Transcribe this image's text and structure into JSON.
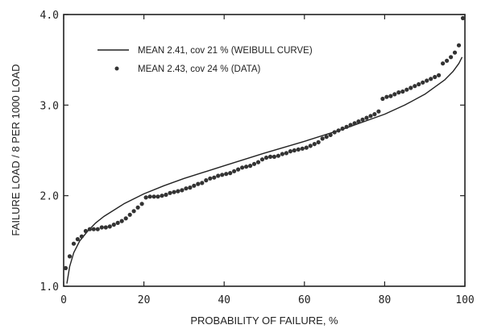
{
  "chart_data": {
    "type": "scatter",
    "xlabel": "PROBABILITY OF FAILURE, %",
    "ylabel": "FAILURE LOAD / 8 PER 1000 LOAD",
    "xlim": [
      0,
      100
    ],
    "ylim": [
      1.0,
      4.0
    ],
    "x_ticks": [
      0,
      20,
      40,
      60,
      80,
      100
    ],
    "x_tick_labels": [
      "0",
      "20",
      "40",
      "60",
      "80",
      "100"
    ],
    "y_ticks": [
      1.0,
      2.0,
      3.0,
      4.0
    ],
    "y_tick_labels": [
      "1.0",
      "2.0",
      "3.0",
      "4.0"
    ],
    "grid": false,
    "legend_position": "top-left",
    "series": [
      {
        "name": "MEAN 2.41, cov 21 % (WEIBULL CURVE)",
        "kind": "line",
        "color": "#222222",
        "x": [
          0.8,
          1.5,
          2.5,
          4,
          6,
          8,
          10,
          15,
          20,
          25,
          30,
          40,
          50,
          60,
          70,
          80,
          85,
          90,
          95,
          97,
          98.5,
          99.3
        ],
        "y": [
          1.03,
          1.22,
          1.37,
          1.5,
          1.61,
          1.7,
          1.77,
          1.91,
          2.02,
          2.11,
          2.19,
          2.33,
          2.47,
          2.6,
          2.74,
          2.9,
          3.0,
          3.12,
          3.28,
          3.37,
          3.46,
          3.53
        ]
      },
      {
        "name": "MEAN 2.43, cov 24 % (DATA)",
        "kind": "points",
        "color": "#333333",
        "x": [
          0.5,
          1.5,
          2.5,
          3.5,
          4.5,
          5.5,
          6.5,
          7.5,
          8.5,
          9.5,
          10.5,
          11.5,
          12.5,
          13.5,
          14.5,
          15.5,
          16.5,
          17.5,
          18.5,
          19.5,
          20.5,
          21.5,
          22.5,
          23.5,
          24.5,
          25.5,
          26.5,
          27.5,
          28.5,
          29.5,
          30.5,
          31.5,
          32.5,
          33.5,
          34.5,
          35.5,
          36.5,
          37.5,
          38.5,
          39.5,
          40.5,
          41.5,
          42.5,
          43.5,
          44.5,
          45.5,
          46.5,
          47.5,
          48.5,
          49.5,
          50.5,
          51.5,
          52.5,
          53.5,
          54.5,
          55.5,
          56.5,
          57.5,
          58.5,
          59.5,
          60.5,
          61.5,
          62.5,
          63.5,
          64.5,
          65.5,
          66.5,
          67.5,
          68.5,
          69.5,
          70.5,
          71.5,
          72.5,
          73.5,
          74.5,
          75.5,
          76.5,
          77.5,
          78.5,
          79.5,
          80.5,
          81.5,
          82.5,
          83.5,
          84.5,
          85.5,
          86.5,
          87.5,
          88.5,
          89.5,
          90.5,
          91.5,
          92.5,
          93.5,
          94.5,
          95.5,
          96.5,
          97.5,
          98.5,
          99.5
        ],
        "y": [
          1.2,
          1.33,
          1.47,
          1.52,
          1.55,
          1.61,
          1.63,
          1.63,
          1.63,
          1.65,
          1.65,
          1.66,
          1.68,
          1.7,
          1.72,
          1.75,
          1.79,
          1.83,
          1.87,
          1.91,
          1.98,
          1.99,
          1.99,
          1.99,
          2.0,
          2.01,
          2.03,
          2.04,
          2.05,
          2.06,
          2.08,
          2.09,
          2.11,
          2.13,
          2.14,
          2.17,
          2.19,
          2.2,
          2.22,
          2.23,
          2.24,
          2.25,
          2.27,
          2.29,
          2.31,
          2.32,
          2.33,
          2.35,
          2.37,
          2.4,
          2.42,
          2.43,
          2.43,
          2.44,
          2.46,
          2.47,
          2.49,
          2.5,
          2.51,
          2.52,
          2.53,
          2.55,
          2.57,
          2.59,
          2.63,
          2.65,
          2.67,
          2.7,
          2.72,
          2.74,
          2.76,
          2.78,
          2.8,
          2.82,
          2.84,
          2.86,
          2.88,
          2.9,
          2.93,
          3.07,
          3.09,
          3.1,
          3.12,
          3.14,
          3.15,
          3.17,
          3.19,
          3.21,
          3.23,
          3.25,
          3.27,
          3.29,
          3.31,
          3.33,
          3.46,
          3.49,
          3.53,
          3.58,
          3.66,
          3.96
        ]
      }
    ]
  }
}
